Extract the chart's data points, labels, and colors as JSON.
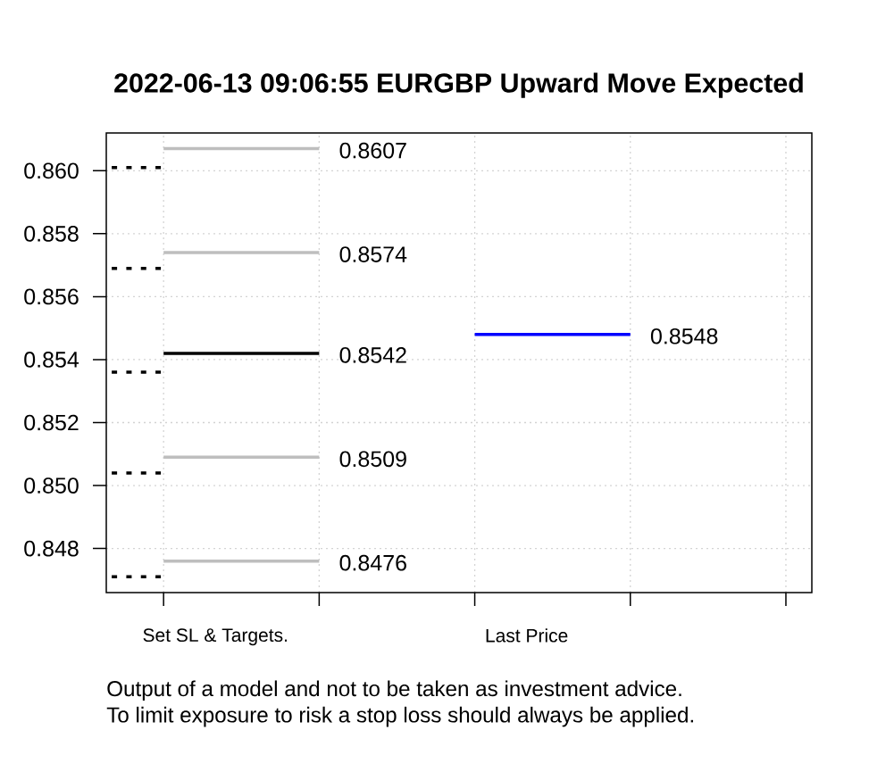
{
  "chart_data": {
    "type": "line",
    "title": "2022-06-13 09:06:55 EURGBP Upward Move Expected",
    "categories": [
      null,
      null,
      "Set SL & Targets.",
      null,
      null,
      null,
      null,
      null,
      "Last Price",
      null,
      null,
      null,
      null,
      null
    ],
    "ylim": [
      0.8466,
      0.8612
    ],
    "yticks": [
      0.848,
      {
        "value": 0.85,
        "label": "0.850"
      },
      0.852,
      0.854,
      0.856,
      0.858,
      {
        "value": 0.86,
        "label": "0.860"
      }
    ],
    "grid": true,
    "line_style": "solid",
    "series": [
      {
        "color": "#000000",
        "line_style": "dotted",
        "values": [
          0.8601,
          0.8601,
          null,
          null,
          null,
          null,
          null,
          null,
          null,
          null,
          null,
          null,
          null,
          null
        ]
      },
      {
        "color": "#000000",
        "line_style": "dotted",
        "values": [
          0.8569,
          0.8569,
          null,
          null,
          null,
          null,
          null,
          null,
          null,
          null,
          null,
          null,
          null,
          null
        ]
      },
      {
        "color": "#000000",
        "line_style": "dotted",
        "values": [
          0.8536,
          0.8536,
          null,
          null,
          null,
          null,
          null,
          null,
          null,
          null,
          null,
          null,
          null,
          null
        ]
      },
      {
        "color": "#000000",
        "line_style": "dotted",
        "values": [
          0.8504,
          0.8504,
          null,
          null,
          null,
          null,
          null,
          null,
          null,
          null,
          null,
          null,
          null,
          null
        ]
      },
      {
        "color": "#000000",
        "line_style": "dotted",
        "values": [
          0.8471,
          0.8471,
          null,
          null,
          null,
          null,
          null,
          null,
          null,
          null,
          null,
          null,
          null,
          null
        ]
      },
      {
        "color": "#bebebe",
        "values": [
          null,
          0.8607,
          0.8607,
          0.8607,
          0.8607,
          null,
          null,
          null,
          null,
          null,
          null,
          null,
          null,
          null
        ],
        "value_labels": [
          null,
          null,
          null,
          null,
          "0.8607",
          null,
          null,
          null,
          null,
          null,
          null,
          null,
          null,
          null
        ]
      },
      {
        "color": "#bebebe",
        "values": [
          null,
          0.8574,
          0.8574,
          0.8574,
          0.8574,
          null,
          null,
          null,
          null,
          null,
          null,
          null,
          null,
          null
        ],
        "value_labels": [
          null,
          null,
          null,
          null,
          "0.8574",
          null,
          null,
          null,
          null,
          null,
          null,
          null,
          null,
          null
        ]
      },
      {
        "color": "#000000",
        "values": [
          null,
          0.8542,
          0.8542,
          0.8542,
          0.8542,
          null,
          null,
          null,
          null,
          null,
          null,
          null,
          null,
          null
        ],
        "value_labels": [
          null,
          null,
          null,
          null,
          "0.8542",
          null,
          null,
          null,
          null,
          null,
          null,
          null,
          null,
          null
        ]
      },
      {
        "color": "#bebebe",
        "values": [
          null,
          0.8509,
          0.8509,
          0.8509,
          0.8509,
          null,
          null,
          null,
          null,
          null,
          null,
          null,
          null,
          null
        ],
        "value_labels": [
          null,
          null,
          null,
          null,
          "0.8509",
          null,
          null,
          null,
          null,
          null,
          null,
          null,
          null,
          null
        ]
      },
      {
        "color": "#bebebe",
        "values": [
          null,
          0.8476,
          0.8476,
          0.8476,
          0.8476,
          null,
          null,
          null,
          null,
          null,
          null,
          null,
          null,
          null
        ],
        "value_labels": [
          null,
          null,
          null,
          null,
          "0.8476",
          null,
          null,
          null,
          null,
          null,
          null,
          null,
          null,
          null
        ]
      },
      {
        "color": "#0000ff",
        "values": [
          null,
          null,
          null,
          null,
          null,
          null,
          null,
          0.8548,
          0.8548,
          0.8548,
          0.8548,
          null,
          null,
          null
        ],
        "value_labels": [
          null,
          null,
          null,
          null,
          null,
          null,
          null,
          null,
          null,
          null,
          "0.8548",
          null,
          null,
          null
        ]
      }
    ],
    "annotations": [
      "Output of a model and not to be taken as investment advice.",
      "To limit exposure to risk a stop loss should always be applied."
    ]
  }
}
